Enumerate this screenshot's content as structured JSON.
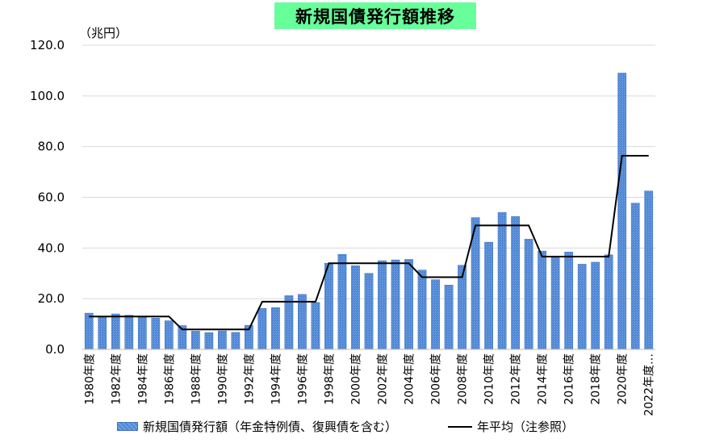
{
  "title": "新規国債発行額推移",
  "unit": "（兆円）",
  "legend": {
    "bars": "新規国債発行額（年金特例債、復興債を含む）",
    "line": "年平均（注参照）"
  },
  "colors": {
    "bar": "#4f86d4",
    "bar_light": "#7aa6e6",
    "line": "#000000",
    "title_bg": "#66ff99",
    "grid": "#d9d9d9"
  },
  "chart_data": {
    "type": "bar",
    "title": "新規国債発行額推移",
    "ylabel": "（兆円）",
    "ylim": [
      0,
      120
    ],
    "yticks": [
      "0.0",
      "20.0",
      "40.0",
      "60.0",
      "80.0",
      "100.0",
      "120.0"
    ],
    "grid": true,
    "legend_position": "bottom",
    "categories": [
      "1980",
      "1981",
      "1982",
      "1983",
      "1984",
      "1985",
      "1986",
      "1987",
      "1988",
      "1989",
      "1990",
      "1991",
      "1992",
      "1993",
      "1994",
      "1995",
      "1996",
      "1997",
      "1998",
      "1999",
      "2000",
      "2001",
      "2002",
      "2003",
      "2004",
      "2005",
      "2006",
      "2007",
      "2008",
      "2009",
      "2010",
      "2011",
      "2012",
      "2013",
      "2014",
      "2015",
      "2016",
      "2017",
      "2018",
      "2019",
      "2020",
      "2021",
      "2022"
    ],
    "xtick_labels": [
      "1980年度",
      "1982年度",
      "1984年度",
      "1986年度",
      "1988年度",
      "1990年度",
      "1992年度",
      "1994年度",
      "1996年度",
      "1998年度",
      "2000年度",
      "2002年度",
      "2004年度",
      "2006年度",
      "2008年度",
      "2010年度",
      "2012年度",
      "2014年度",
      "2016年度",
      "2018年度",
      "2020年度",
      "2022年度…"
    ],
    "series": [
      {
        "name": "新規国債発行額（年金特例債、復興債を含む）",
        "type": "bar",
        "values": [
          14.3,
          12.9,
          14.0,
          13.5,
          12.8,
          12.3,
          11.3,
          9.4,
          7.2,
          6.6,
          7.3,
          6.7,
          9.5,
          16.2,
          16.5,
          21.2,
          21.7,
          18.5,
          34.0,
          37.5,
          33.0,
          30.0,
          35.0,
          35.3,
          35.5,
          31.3,
          27.5,
          25.4,
          33.2,
          52.0,
          42.3,
          54.0,
          52.4,
          43.5,
          38.8,
          36.8,
          38.4,
          33.6,
          34.4,
          37.3,
          109.0,
          57.7,
          62.5
        ]
      },
      {
        "name": "年平均（注参照）",
        "type": "line",
        "values": [
          13.0,
          13.0,
          13.0,
          13.0,
          13.0,
          13.0,
          13.0,
          7.9,
          7.9,
          7.9,
          7.9,
          7.9,
          7.9,
          18.8,
          18.8,
          18.8,
          18.8,
          18.8,
          34.0,
          34.0,
          34.0,
          34.0,
          34.0,
          34.0,
          34.0,
          28.5,
          28.5,
          28.5,
          28.5,
          48.9,
          48.9,
          48.9,
          48.9,
          48.9,
          36.6,
          36.6,
          36.6,
          36.6,
          36.6,
          36.6,
          76.4,
          76.4,
          76.4
        ]
      }
    ]
  }
}
